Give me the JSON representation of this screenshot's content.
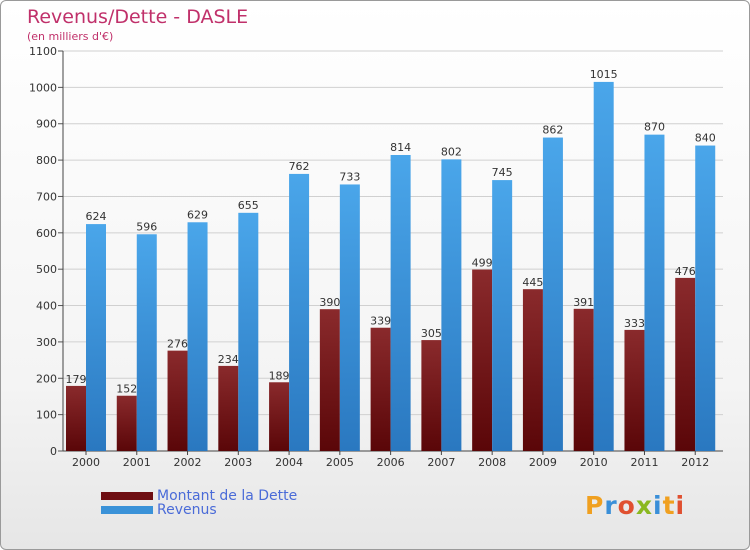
{
  "title": "Revenus/Dette - DASLE",
  "subtitle": "(en milliers d'€)",
  "logo": {
    "text": "Proxiti"
  },
  "colors": {
    "dette": "#7a1418",
    "revenus": "#3a92d8"
  },
  "chart_data": {
    "type": "bar",
    "categories": [
      "2000",
      "2001",
      "2002",
      "2003",
      "2004",
      "2005",
      "2006",
      "2007",
      "2008",
      "2009",
      "2010",
      "2011",
      "2012"
    ],
    "series": [
      {
        "name": "Montant de la Dette",
        "values": [
          179,
          152,
          276,
          234,
          189,
          390,
          339,
          305,
          499,
          445,
          391,
          333,
          476
        ]
      },
      {
        "name": "Revenus",
        "values": [
          624,
          596,
          629,
          655,
          762,
          733,
          814,
          802,
          745,
          862,
          1015,
          870,
          840
        ]
      }
    ],
    "ylim": [
      0,
      1100
    ],
    "yticks": [
      0,
      100,
      200,
      300,
      400,
      500,
      600,
      700,
      800,
      900,
      1000,
      1100
    ],
    "grid": true,
    "legend": "bottom-left"
  }
}
